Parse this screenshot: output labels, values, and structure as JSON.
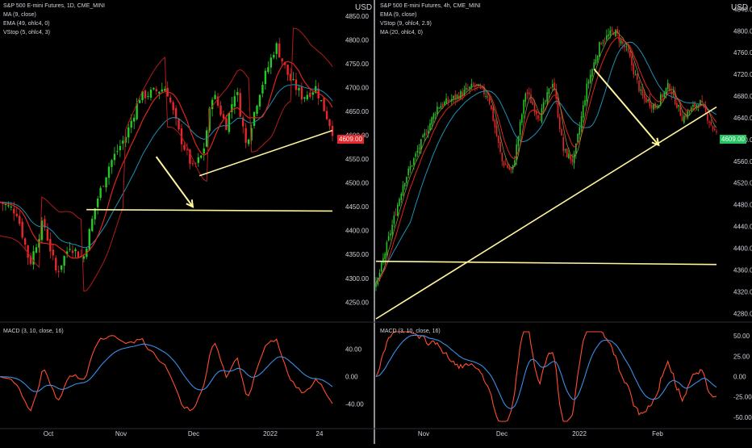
{
  "colors": {
    "background": "#000000",
    "up": "#26c826",
    "down": "#e8262c",
    "ema": "#e0231c",
    "ma": "#1e8fb4",
    "vstop": "#b41a1a",
    "trendline": "#fff59d",
    "macd": "#ff4d2e",
    "signal": "#3a8ee6",
    "axis_text": "#d1d4dc",
    "grid": "#2a2e39"
  },
  "left_panel": {
    "title": "S&P 500 E-mini Futures, 1D, CME_MINI",
    "indicators": [
      "MA (9, close)",
      "EMA (49, ohlc4, 0)",
      "VStop (5, ohlc4, 3)"
    ],
    "currency": "USD",
    "last_price": "4609.00",
    "macd_label": "MACD (3, 10, close, 16)"
  },
  "right_panel": {
    "title": "S&P 500 E-mini Futures, 4h, CME_MINI",
    "indicators": [
      "EMA (9, close)",
      "VStop (9, ohlc4, 2.9)",
      "MA (20, ohlc4, 0)"
    ],
    "currency": "USD",
    "last_price": "4609.00",
    "macd_label": "MACD (3, 10, close, 16)"
  },
  "chart_data": [
    {
      "type": "candlestick",
      "title": "S&P 500 E-mini Futures, 1D, CME_MINI",
      "timeframe": "1D",
      "x_ticks": [
        "Oct",
        "Nov",
        "Dec",
        "2022",
        "24"
      ],
      "y_ticks": [
        4250,
        4300,
        4350,
        4400,
        4450,
        4500,
        4550,
        4600,
        4650,
        4700,
        4750,
        4800,
        4850
      ],
      "ylim": [
        4215,
        4870
      ],
      "last_price": 4609,
      "close_path": [
        {
          "t": 0,
          "v": 4460
        },
        {
          "t": 0.05,
          "v": 4440
        },
        {
          "t": 0.09,
          "v": 4330
        },
        {
          "t": 0.13,
          "v": 4420
        },
        {
          "t": 0.17,
          "v": 4310
        },
        {
          "t": 0.21,
          "v": 4370
        },
        {
          "t": 0.25,
          "v": 4340
        },
        {
          "t": 0.29,
          "v": 4460
        },
        {
          "t": 0.33,
          "v": 4540
        },
        {
          "t": 0.38,
          "v": 4600
        },
        {
          "t": 0.42,
          "v": 4680
        },
        {
          "t": 0.46,
          "v": 4690
        },
        {
          "t": 0.5,
          "v": 4700
        },
        {
          "t": 0.54,
          "v": 4600
        },
        {
          "t": 0.58,
          "v": 4530
        },
        {
          "t": 0.61,
          "v": 4560
        },
        {
          "t": 0.64,
          "v": 4690
        },
        {
          "t": 0.68,
          "v": 4620
        },
        {
          "t": 0.71,
          "v": 4700
        },
        {
          "t": 0.74,
          "v": 4580
        },
        {
          "t": 0.78,
          "v": 4690
        },
        {
          "t": 0.83,
          "v": 4790
        },
        {
          "t": 0.87,
          "v": 4720
        },
        {
          "t": 0.91,
          "v": 4680
        },
        {
          "t": 0.95,
          "v": 4700
        },
        {
          "t": 1.0,
          "v": 4609
        }
      ],
      "trendlines": [
        {
          "from": {
            "t": 0.26,
            "v": 4444
          },
          "to": {
            "t": 1.0,
            "v": 4441
          },
          "label": "support"
        },
        {
          "from": {
            "t": 0.6,
            "v": 4515
          },
          "to": {
            "t": 1.0,
            "v": 4610
          },
          "label": "rising"
        }
      ],
      "arrow": {
        "from": {
          "t": 0.47,
          "v": 4555
        },
        "to": {
          "t": 0.58,
          "v": 4450
        }
      },
      "macd": {
        "y_ticks": [
          40,
          0,
          -40
        ],
        "ylim": [
          -65,
          65
        ]
      }
    },
    {
      "type": "candlestick",
      "title": "S&P 500 E-mini Futures, 4h, CME_MINI",
      "timeframe": "4h",
      "x_ticks": [
        "Nov",
        "Dec",
        "2022",
        "Feb"
      ],
      "y_ticks": [
        4280,
        4320,
        4360,
        4400,
        4440,
        4480,
        4520,
        4560,
        4600,
        4640,
        4680,
        4720,
        4760,
        4800,
        4840
      ],
      "ylim": [
        4270,
        4845
      ],
      "last_price": 4609,
      "close_path": [
        {
          "t": 0,
          "v": 4330
        },
        {
          "t": 0.03,
          "v": 4400
        },
        {
          "t": 0.08,
          "v": 4520
        },
        {
          "t": 0.13,
          "v": 4590
        },
        {
          "t": 0.18,
          "v": 4660
        },
        {
          "t": 0.24,
          "v": 4680
        },
        {
          "t": 0.29,
          "v": 4700
        },
        {
          "t": 0.33,
          "v": 4680
        },
        {
          "t": 0.37,
          "v": 4560
        },
        {
          "t": 0.4,
          "v": 4540
        },
        {
          "t": 0.44,
          "v": 4690
        },
        {
          "t": 0.48,
          "v": 4640
        },
        {
          "t": 0.52,
          "v": 4710
        },
        {
          "t": 0.55,
          "v": 4580
        },
        {
          "t": 0.58,
          "v": 4560
        },
        {
          "t": 0.62,
          "v": 4700
        },
        {
          "t": 0.66,
          "v": 4780
        },
        {
          "t": 0.7,
          "v": 4800
        },
        {
          "t": 0.74,
          "v": 4760
        },
        {
          "t": 0.78,
          "v": 4680
        },
        {
          "t": 0.82,
          "v": 4660
        },
        {
          "t": 0.86,
          "v": 4700
        },
        {
          "t": 0.9,
          "v": 4640
        },
        {
          "t": 0.95,
          "v": 4670
        },
        {
          "t": 1.0,
          "v": 4609
        }
      ],
      "trendlines": [
        {
          "from": {
            "t": 0.0,
            "v": 4376
          },
          "to": {
            "t": 1.0,
            "v": 4370
          },
          "label": "support"
        },
        {
          "from": {
            "t": 0.0,
            "v": 4270
          },
          "to": {
            "t": 1.0,
            "v": 4660
          },
          "label": "rising"
        }
      ],
      "arrow": {
        "from": {
          "t": 0.64,
          "v": 4730
        },
        "to": {
          "t": 0.83,
          "v": 4590
        }
      },
      "macd": {
        "y_ticks": [
          50,
          25,
          0,
          -25,
          -50
        ],
        "ylim": [
          -55,
          55
        ]
      }
    }
  ]
}
